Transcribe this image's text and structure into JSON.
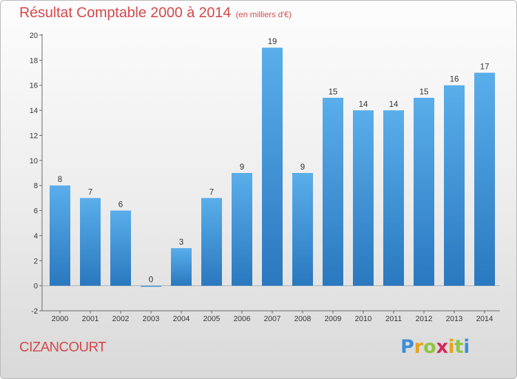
{
  "title": "Résultat Comptable 2000 à 2014",
  "subtitle": "(en milliers d'€)",
  "city": "CIZANCOURT",
  "brand": {
    "letters": [
      "P",
      "r",
      "o",
      "x",
      "i",
      "t",
      "i"
    ],
    "colors": [
      "#3d8fd6",
      "#e8a21c",
      "#8dc63f",
      "#d6285a",
      "#e8a21c",
      "#8dc63f",
      "#3d8fd6"
    ]
  },
  "chart_data": {
    "type": "bar",
    "categories": [
      "2000",
      "2001",
      "2002",
      "2003",
      "2004",
      "2005",
      "2006",
      "2007",
      "2008",
      "2009",
      "2010",
      "2011",
      "2012",
      "2013",
      "2014"
    ],
    "values": [
      8,
      7,
      6,
      0,
      3,
      7,
      9,
      19,
      9,
      15,
      14,
      14,
      15,
      16,
      17
    ],
    "ylim": [
      -2,
      20
    ],
    "yticks": [
      -2,
      0,
      2,
      4,
      6,
      8,
      10,
      12,
      14,
      16,
      18,
      20
    ],
    "bar_color": "#3d8fd6",
    "grid": false,
    "data_labels": true
  }
}
